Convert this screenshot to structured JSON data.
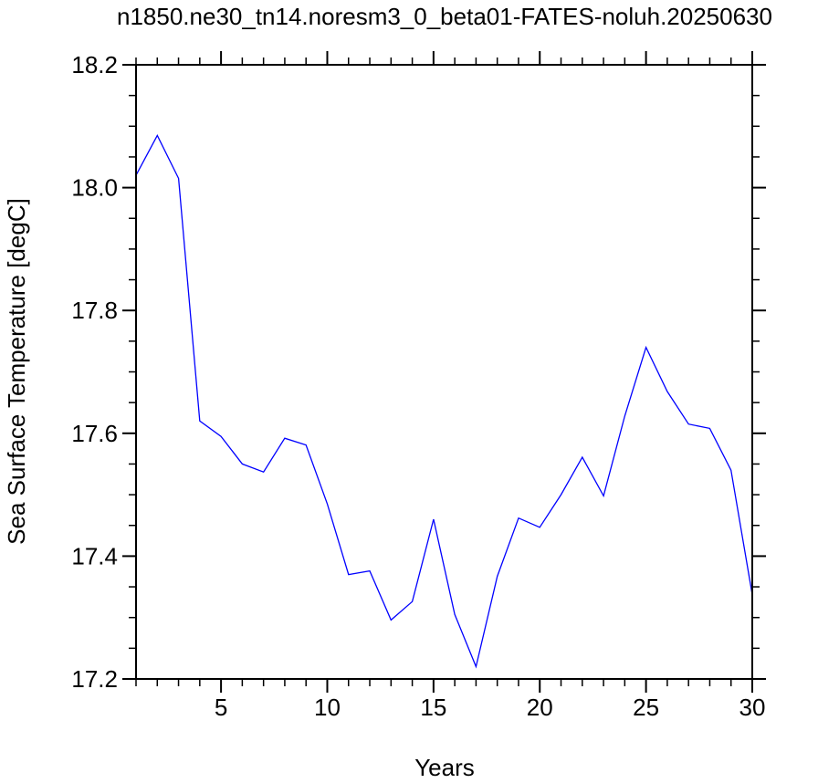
{
  "chart_data": {
    "type": "line",
    "title": "n1850.ne30_tn14.noresm3_0_beta01-FATES-noluh.20250630",
    "xlabel": "Years",
    "ylabel": "Sea Surface Temperature [degC]",
    "xlim": [
      1,
      30
    ],
    "ylim": [
      17.2,
      18.2
    ],
    "xticks": [
      5,
      10,
      15,
      20,
      25,
      30
    ],
    "xtick_labels": [
      "5",
      "10",
      "15",
      "20",
      "25",
      "30"
    ],
    "xminor_step": 1,
    "yticks": [
      17.2,
      17.4,
      17.6,
      17.8,
      18.0,
      18.2
    ],
    "ytick_labels": [
      "17.2",
      "17.4",
      "17.6",
      "17.8",
      "18.0",
      "18.2"
    ],
    "yminor_step": 0.05,
    "grid": false,
    "series": [
      {
        "color": "#0000ff",
        "x": [
          1,
          2,
          3,
          4,
          5,
          6,
          7,
          8,
          9,
          10,
          11,
          12,
          13,
          14,
          15,
          16,
          17,
          18,
          19,
          20,
          21,
          22,
          23,
          24,
          25,
          26,
          27,
          28,
          29,
          30
        ],
        "y": [
          18.02,
          18.085,
          18.015,
          17.62,
          17.595,
          17.55,
          17.537,
          17.592,
          17.581,
          17.485,
          17.37,
          17.376,
          17.296,
          17.326,
          17.46,
          17.305,
          17.22,
          17.367,
          17.462,
          17.447,
          17.5,
          17.561,
          17.498,
          17.628,
          17.74,
          17.668,
          17.615,
          17.608,
          17.54,
          17.337
        ]
      }
    ]
  }
}
